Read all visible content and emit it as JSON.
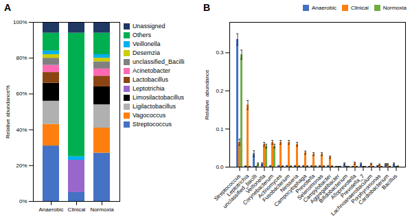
{
  "chart_data": [
    {
      "type": "bar",
      "title": "A",
      "stacked": true,
      "categories": [
        "Anaerobic",
        "Clinical",
        "Normoxia"
      ],
      "series": [
        {
          "name": "Streptococcus",
          "color": "#4472C4",
          "values": [
            0.31,
            0.05,
            0.27
          ]
        },
        {
          "name": "Vagococcus",
          "color": "#FF7F0E",
          "values": [
            0.12,
            0.0,
            0.14
          ]
        },
        {
          "name": "Ligilactobacillus",
          "color": "#B0B0B0",
          "values": [
            0.13,
            0.0,
            0.13
          ]
        },
        {
          "name": "Limosilactobacillus",
          "color": "#000000",
          "values": [
            0.1,
            0.0,
            0.1
          ]
        },
        {
          "name": "Leptotrichia",
          "color": "#9966CC",
          "values": [
            0.0,
            0.18,
            0.0
          ]
        },
        {
          "name": "Lactobacillus",
          "color": "#8B4513",
          "values": [
            0.06,
            0.0,
            0.06
          ]
        },
        {
          "name": "Acinetobacter",
          "color": "#FF69B4",
          "values": [
            0.04,
            0.0,
            0.04
          ]
        },
        {
          "name": "unclassified_Bacilli",
          "color": "#808080",
          "values": [
            0.04,
            0.0,
            0.04
          ]
        },
        {
          "name": "Desemzia",
          "color": "#CCCC00",
          "values": [
            0.02,
            0.0,
            0.02
          ]
        },
        {
          "name": "Veillonella",
          "color": "#00B0F0",
          "values": [
            0.02,
            0.02,
            0.02
          ]
        },
        {
          "name": "Others",
          "color": "#00B050",
          "values": [
            0.1,
            0.69,
            0.12
          ]
        },
        {
          "name": "Unassigned",
          "color": "#1F3864",
          "values": [
            0.06,
            0.06,
            0.06
          ]
        }
      ],
      "ylabel": "Relative abundance%",
      "ylim": [
        0,
        1.0
      ],
      "yticks": [
        {
          "value": 0,
          "label": "0%"
        },
        {
          "value": 0.2,
          "label": "20%"
        },
        {
          "value": 0.4,
          "label": "40%"
        },
        {
          "value": 0.6,
          "label": "60%"
        },
        {
          "value": 0.8,
          "label": "80%"
        },
        {
          "value": 1.0,
          "label": "100%"
        }
      ],
      "legend": "right"
    },
    {
      "type": "bar",
      "title": "B",
      "categories": [
        "Streptococcus",
        "Leptotrichia",
        "unclassified_bacilli",
        "Veillonella",
        "Corynebacterum",
        "Actinomyces",
        "Fusobacterium",
        "Neisseria",
        "Campocytophaga",
        "Prevotella",
        "Selenomonas",
        "Campylobacter",
        "Aggregatibacter",
        "Bifidobacterium",
        "Alloprevotella",
        "Prevotella_7",
        "Lachnoanaerobaculum",
        "Porphyromonas",
        "Cardiobacterium",
        "Bacillus"
      ],
      "series": [
        {
          "name": "Anaerobic",
          "color": "#4472C4",
          "values": [
            0.335,
            0.002,
            0.035,
            0.008,
            0.002,
            0.002,
            0.002,
            0.002,
            0.002,
            0.002,
            0.002,
            0.002,
            0.001,
            0.008,
            0.001,
            0.008,
            0.001,
            0.002,
            0.007,
            0.008
          ],
          "errors": [
            0.015,
            0.001,
            0.008,
            0.003,
            0.002,
            0.002,
            0.002,
            0.002,
            0.002,
            0.002,
            0.002,
            0.002,
            0.001,
            0.003,
            0.001,
            0.003,
            0.001,
            0.002,
            0.002,
            0.003
          ]
        },
        {
          "name": "Clinical",
          "color": "#FF7F0E",
          "values": [
            0.065,
            0.163,
            0.001,
            0.06,
            0.065,
            0.065,
            0.065,
            0.06,
            0.038,
            0.034,
            0.034,
            0.026,
            0.001,
            0.001,
            0.01,
            0.001,
            0.008,
            0.006,
            0.007,
            0.001
          ],
          "errors": [
            0.008,
            0.012,
            0.001,
            0.005,
            0.005,
            0.005,
            0.005,
            0.005,
            0.004,
            0.004,
            0.004,
            0.003,
            0.001,
            0.001,
            0.003,
            0.001,
            0.002,
            0.002,
            0.002,
            0.001
          ]
        },
        {
          "name": "Normoxia",
          "color": "#70AD47",
          "values": [
            0.295,
            0.001,
            0.008,
            0.055,
            0.055,
            0.002,
            0.002,
            0.002,
            0.002,
            0.002,
            0.002,
            0.002,
            0.001,
            0.001,
            0.001,
            0.001,
            0.001,
            0.001,
            0.001,
            0.002
          ],
          "errors": [
            0.012,
            0.001,
            0.003,
            0.005,
            0.005,
            0.001,
            0.001,
            0.001,
            0.001,
            0.001,
            0.001,
            0.001,
            0.001,
            0.001,
            0.001,
            0.001,
            0.001,
            0.001,
            0.001,
            0.001
          ]
        }
      ],
      "ylabel": "Relative  abundance",
      "ylim": [
        0,
        0.38
      ],
      "yticks": [
        {
          "value": 0.0,
          "label": "0.0"
        },
        0.1,
        0.2,
        0.3
      ],
      "legend": "upper right"
    }
  ]
}
